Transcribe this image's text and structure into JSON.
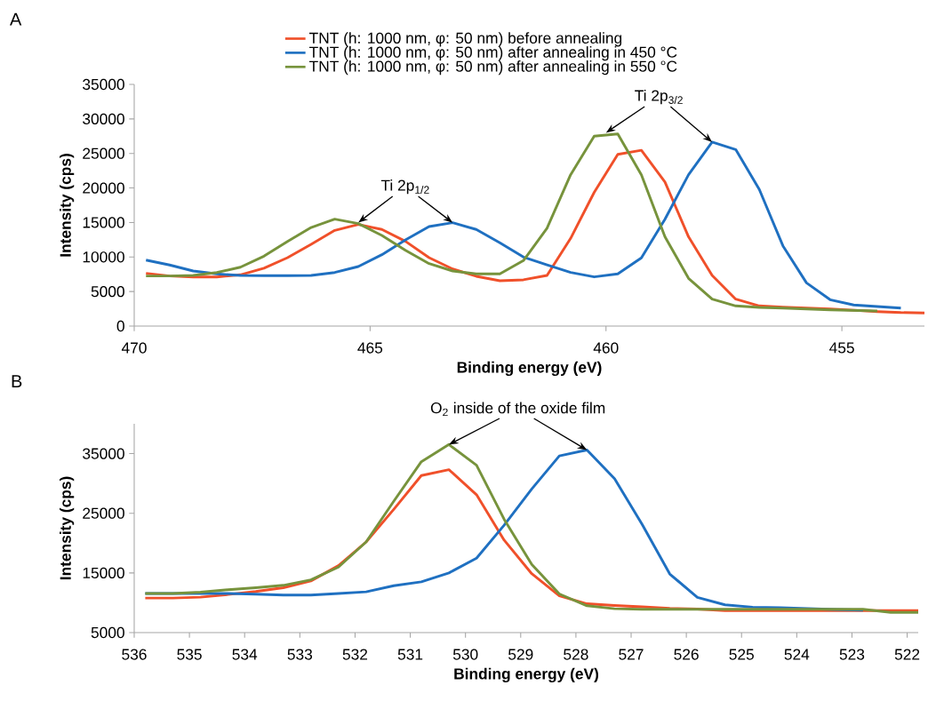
{
  "chart_data": [
    {
      "type": "line",
      "title": "A",
      "xlabel": "Binding energy (eV)",
      "ylabel": "Intensity (cps)",
      "xlim": [
        470,
        453.25
      ],
      "ylim": [
        0,
        35000
      ],
      "xticks": [
        470,
        465,
        460,
        455
      ],
      "yticks": [
        0,
        5000,
        10000,
        15000,
        20000,
        25000,
        30000,
        35000
      ],
      "legend": "top",
      "series": [
        {
          "name": "TNT (h: 1000 nm, φ: 50 nm) before annealing",
          "color": "#f0502a",
          "x": [
            469.75,
            469.25,
            468.75,
            468.25,
            467.75,
            467.25,
            466.75,
            466.25,
            465.75,
            465.25,
            464.75,
            464.25,
            463.75,
            463.25,
            462.75,
            462.25,
            461.75,
            461.25,
            460.75,
            460.25,
            459.75,
            459.25,
            458.75,
            458.25,
            457.75,
            457.25,
            456.75,
            456.25,
            455.75,
            455.25,
            454.75,
            454.25,
            453.75,
            453.25
          ],
          "values": [
            7640,
            7250,
            7120,
            7120,
            7420,
            8390,
            9910,
            11840,
            13850,
            14710,
            13990,
            12270,
            9910,
            8270,
            7210,
            6570,
            6700,
            7340,
            12700,
            19370,
            24860,
            25460,
            20870,
            12920,
            7340,
            3900,
            2920,
            2740,
            2610,
            2480,
            2300,
            2100,
            1960,
            1900
          ]
        },
        {
          "name": "TNT (h: 1000 nm, φ: 50 nm) after annealing in 450 °C",
          "color": "#1f70c1",
          "x": [
            469.75,
            469.25,
            468.75,
            468.25,
            467.75,
            467.25,
            466.75,
            466.25,
            465.75,
            465.25,
            464.75,
            464.25,
            463.75,
            463.25,
            462.75,
            462.25,
            461.75,
            461.25,
            460.75,
            460.25,
            459.75,
            459.25,
            458.75,
            458.25,
            457.75,
            457.25,
            456.75,
            456.25,
            455.75,
            455.25,
            454.75,
            454.25,
            453.75
          ],
          "values": [
            9560,
            8840,
            7980,
            7550,
            7330,
            7300,
            7300,
            7330,
            7760,
            8620,
            10340,
            12480,
            14410,
            14970,
            13990,
            12060,
            10000,
            8850,
            7770,
            7120,
            7550,
            9870,
            15480,
            21920,
            26640,
            25570,
            19780,
            11620,
            6260,
            3820,
            3050,
            2830,
            2610
          ]
        },
        {
          "name": "TNT (h: 1000 nm, φ: 50 nm) after annealing in 550 °C",
          "color": "#77933c",
          "x": [
            469.75,
            469.25,
            468.75,
            468.25,
            467.75,
            467.25,
            466.75,
            466.25,
            465.75,
            465.25,
            464.75,
            464.25,
            463.75,
            463.25,
            462.75,
            462.25,
            461.75,
            461.25,
            460.75,
            460.25,
            459.75,
            459.25,
            458.75,
            458.25,
            457.75,
            457.25,
            456.75,
            456.25,
            455.75,
            455.25,
            454.75,
            454.25
          ],
          "values": [
            7250,
            7250,
            7340,
            7760,
            8530,
            10120,
            12270,
            14280,
            15490,
            14840,
            13130,
            10980,
            9050,
            7980,
            7550,
            7550,
            9480,
            14180,
            21920,
            27500,
            27820,
            21920,
            12920,
            6910,
            3900,
            2920,
            2700,
            2610,
            2480,
            2350,
            2270,
            2190
          ]
        }
      ],
      "annotations": [
        {
          "text": "Ti 2p$_{1/2}$",
          "x": 465.25,
          "y": 15000
        },
        {
          "text": "Ti 2p$_{3/2}$",
          "x": 460.0,
          "y": 28000
        }
      ]
    },
    {
      "type": "line",
      "title": "B",
      "xlabel": "Binding energy (eV)",
      "ylabel": "Intensity (cps)",
      "xlim": [
        536,
        521.8
      ],
      "ylim": [
        5000,
        40000
      ],
      "xticks": [
        536,
        535,
        534,
        533,
        532,
        531,
        530,
        529,
        528,
        527,
        526,
        525,
        524,
        523,
        522
      ],
      "yticks": [
        5000,
        15000,
        25000,
        35000
      ],
      "series": [
        {
          "color": "#f0502a",
          "x": [
            535.8,
            535.3,
            534.8,
            534.3,
            533.8,
            533.3,
            532.8,
            532.3,
            531.8,
            531.3,
            530.8,
            530.3,
            529.8,
            529.3,
            528.8,
            528.3,
            527.8,
            527.3,
            526.8,
            526.3,
            525.8,
            525.3,
            524.8,
            524.3,
            523.8,
            523.3,
            522.8,
            522.3,
            521.8
          ],
          "values": [
            10790,
            10790,
            10940,
            11380,
            11880,
            12520,
            13660,
            16230,
            20190,
            25640,
            31320,
            32310,
            28110,
            20500,
            14870,
            11160,
            9830,
            9530,
            9330,
            9080,
            8940,
            8690,
            8690,
            8690,
            8690,
            8690,
            8690,
            8690,
            8690
          ]
        },
        {
          "color": "#1f70c1",
          "x": [
            535.8,
            535.3,
            534.8,
            534.3,
            533.8,
            533.3,
            532.8,
            532.3,
            531.8,
            531.3,
            530.8,
            530.3,
            529.8,
            529.3,
            528.8,
            528.3,
            527.8,
            527.3,
            526.8,
            526.3,
            525.8,
            525.3,
            524.8,
            524.3,
            523.8,
            523.3,
            522.8
          ],
          "values": [
            11540,
            11540,
            11540,
            11540,
            11440,
            11290,
            11290,
            11540,
            11830,
            12860,
            13510,
            15000,
            17470,
            23000,
            29080,
            34620,
            35610,
            30810,
            23140,
            14820,
            10900,
            9660,
            9260,
            9160,
            9010,
            8860,
            8760
          ]
        },
        {
          "color": "#77933c",
          "x": [
            535.8,
            535.3,
            534.8,
            534.3,
            533.8,
            533.3,
            532.8,
            532.3,
            531.8,
            531.3,
            530.8,
            530.3,
            529.8,
            529.3,
            528.8,
            528.3,
            527.8,
            527.3,
            526.8,
            526.3,
            525.8,
            525.3,
            524.8,
            524.3,
            523.8,
            523.3,
            522.8,
            522.3,
            521.8
          ],
          "values": [
            11540,
            11540,
            11780,
            12180,
            12520,
            12920,
            13850,
            15980,
            20190,
            27000,
            33650,
            36520,
            33060,
            24000,
            16420,
            11480,
            9500,
            9000,
            8900,
            8900,
            8900,
            8900,
            8900,
            8900,
            8900,
            8900,
            8900,
            8400,
            8400
          ]
        }
      ],
      "annotations": [
        {
          "text": "O$_{2}$ inside of the oxide film",
          "x": 530.3,
          "y": 36520
        }
      ]
    }
  ]
}
